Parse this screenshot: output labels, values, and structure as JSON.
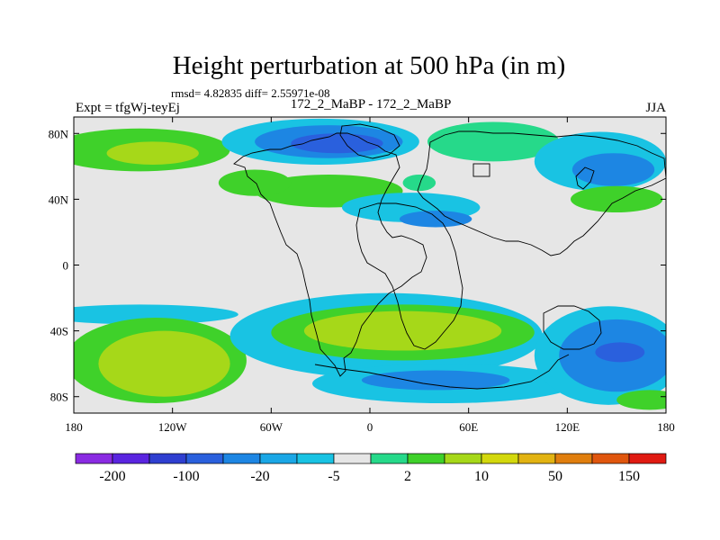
{
  "chart_data": {
    "type": "heatmap",
    "title": "Height perturbation at 500 hPa (in m)",
    "stats_label": "rmsd= 4.82835 diff= 2.55971e-08",
    "experiment_label": "Expt = tfgWj-teyEj",
    "subtitle": "172_2_MaBP - 172_2_MaBP",
    "season": "JJA",
    "x_ticks": [
      "180",
      "120W",
      "60W",
      "0",
      "60E",
      "120E",
      "180"
    ],
    "y_ticks": [
      "80N",
      "40N",
      "0",
      "40S",
      "80S"
    ],
    "x_tick_values": [
      -180,
      -120,
      -60,
      0,
      60,
      120,
      180
    ],
    "y_tick_values": [
      80,
      40,
      0,
      -40,
      -80
    ],
    "xlim": [
      -180,
      180
    ],
    "ylim": [
      -90,
      90
    ],
    "colorbar_labels": [
      "-200",
      "-100",
      "-20",
      "-5",
      "2",
      "10",
      "50",
      "150"
    ],
    "colorbar_colors": [
      "#8a2be2",
      "#5a25e0",
      "#2f3fd0",
      "#2a60dd",
      "#1d86e3",
      "#1aa7e6",
      "#19c3e3",
      "#e6e6e6",
      "#26d98a",
      "#3fd12a",
      "#a6d819",
      "#d3d80d",
      "#e2b312",
      "#e07e0e",
      "#e0560e",
      "#e01a12"
    ],
    "fields": [
      {
        "lon": -140,
        "lat": 70,
        "rx": 55,
        "ry": 13,
        "level": "10"
      },
      {
        "lon": -132,
        "lat": 68,
        "rx": 28,
        "ry": 7,
        "level": "50"
      },
      {
        "lon": -30,
        "lat": 75,
        "rx": 60,
        "ry": 14,
        "level": "-5"
      },
      {
        "lon": -25,
        "lat": 75,
        "rx": 45,
        "ry": 10,
        "level": "-20"
      },
      {
        "lon": -20,
        "lat": 74,
        "rx": 28,
        "ry": 6,
        "level": "-100"
      },
      {
        "lon": 75,
        "lat": 75,
        "rx": 40,
        "ry": 12,
        "level": "2"
      },
      {
        "lon": 140,
        "lat": 63,
        "rx": 40,
        "ry": 18,
        "level": "-5"
      },
      {
        "lon": 148,
        "lat": 58,
        "rx": 25,
        "ry": 10,
        "level": "-20"
      },
      {
        "lon": -25,
        "lat": 45,
        "rx": 45,
        "ry": 10,
        "level": "10"
      },
      {
        "lon": -70,
        "lat": 50,
        "rx": 22,
        "ry": 8,
        "level": "10"
      },
      {
        "lon": 25,
        "lat": 35,
        "rx": 42,
        "ry": 9,
        "level": "-5"
      },
      {
        "lon": 40,
        "lat": 28,
        "rx": 22,
        "ry": 5,
        "level": "-20"
      },
      {
        "lon": 30,
        "lat": 50,
        "rx": 10,
        "ry": 5,
        "level": "2"
      },
      {
        "lon": 150,
        "lat": 40,
        "rx": 28,
        "ry": 8,
        "level": "10"
      },
      {
        "lon": -140,
        "lat": -30,
        "rx": 60,
        "ry": 6,
        "level": "-5"
      },
      {
        "lon": -130,
        "lat": -58,
        "rx": 55,
        "ry": 26,
        "level": "10"
      },
      {
        "lon": -125,
        "lat": -60,
        "rx": 40,
        "ry": 20,
        "level": "50"
      },
      {
        "lon": 10,
        "lat": -43,
        "rx": 95,
        "ry": 26,
        "level": "-5"
      },
      {
        "lon": 20,
        "lat": -41,
        "rx": 80,
        "ry": 17,
        "level": "10"
      },
      {
        "lon": 20,
        "lat": -40,
        "rx": 60,
        "ry": 12,
        "level": "50"
      },
      {
        "lon": 45,
        "lat": -72,
        "rx": 80,
        "ry": 12,
        "level": "-5"
      },
      {
        "lon": 40,
        "lat": -70,
        "rx": 45,
        "ry": 6,
        "level": "-20"
      },
      {
        "lon": 145,
        "lat": -55,
        "rx": 45,
        "ry": 30,
        "level": "-5"
      },
      {
        "lon": 150,
        "lat": -55,
        "rx": 35,
        "ry": 22,
        "level": "-20"
      },
      {
        "lon": 152,
        "lat": -53,
        "rx": 15,
        "ry": 6,
        "level": "-100"
      },
      {
        "lon": 170,
        "lat": -82,
        "rx": 20,
        "ry": 6,
        "level": "10"
      }
    ]
  }
}
